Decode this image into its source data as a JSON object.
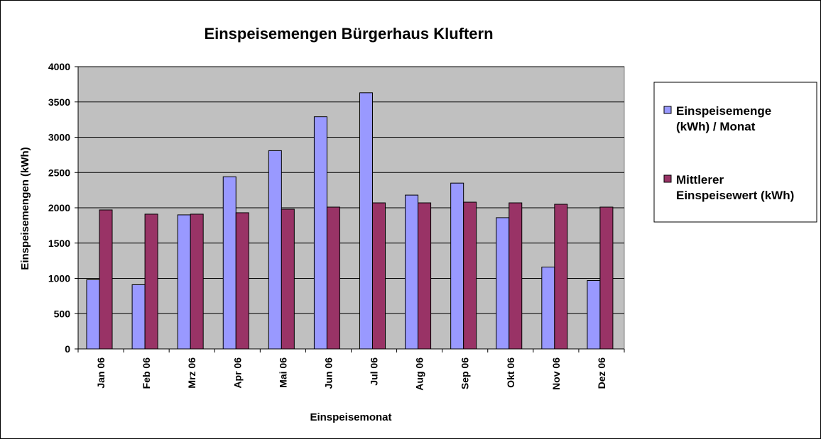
{
  "chart_data": {
    "type": "bar",
    "title": "Einspeisemengen Bürgerhaus Kluftern",
    "xlabel": "Einspeisemonat",
    "ylabel": "Einspeisemengen (kWh)",
    "ylim": [
      0,
      4000
    ],
    "yticks": [
      0,
      500,
      1000,
      1500,
      2000,
      2500,
      3000,
      3500,
      4000
    ],
    "grid": true,
    "legend_position": "right",
    "categories": [
      "Jan 06",
      "Feb 06",
      "Mrz 06",
      "Apr 06",
      "Mai 06",
      "Jun 06",
      "Jul 06",
      "Aug 06",
      "Sep 06",
      "Okt 06",
      "Nov 06",
      "Dez 06"
    ],
    "series": [
      {
        "name_lines": [
          "Einspeisemenge",
          "(kWh) / Monat"
        ],
        "color": "#9999ff",
        "values": [
          980,
          910,
          1900,
          2440,
          2810,
          3290,
          3630,
          2180,
          2350,
          1860,
          1160,
          970
        ]
      },
      {
        "name_lines": [
          "Mittlerer",
          "Einspeisewert (kWh)"
        ],
        "color": "#993366",
        "values": [
          1970,
          1910,
          1910,
          1930,
          1980,
          2010,
          2070,
          2070,
          2080,
          2070,
          2050,
          2010
        ]
      }
    ],
    "plot_background": "#c0c0c0"
  }
}
